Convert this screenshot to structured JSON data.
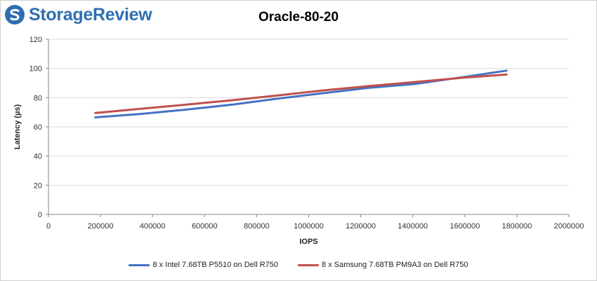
{
  "brand": {
    "name": "StorageReview",
    "color": "#2e6fb0",
    "icon": "storagereview-logo-icon"
  },
  "chart_data": {
    "type": "line",
    "title": "Oracle-80-20",
    "xlabel": "IOPS",
    "ylabel": "Latency (µs)",
    "xlim": [
      0,
      2000000
    ],
    "ylim": [
      0,
      120
    ],
    "x_ticks": [
      0,
      200000,
      400000,
      600000,
      800000,
      1000000,
      1200000,
      1400000,
      1600000,
      1800000,
      2000000
    ],
    "y_ticks": [
      0,
      20,
      40,
      60,
      80,
      100,
      120
    ],
    "grid": "horizontal",
    "legend_position": "bottom",
    "series": [
      {
        "name": "8 x Intel 7.68TB P5510 on Dell R750",
        "color": "#4472c4",
        "x": [
          180000,
          350000,
          530000,
          710000,
          880000,
          1060000,
          1230000,
          1410000,
          1590000,
          1760000
        ],
        "y": [
          66.5,
          68.8,
          71.8,
          75.3,
          79.3,
          83.2,
          86.7,
          89.4,
          94.0,
          98.5
        ]
      },
      {
        "name": "8 x Samsung 7.68TB PM9A3 on Dell R750",
        "color": "#c0504d",
        "x": [
          180000,
          350000,
          530000,
          710000,
          880000,
          1060000,
          1230000,
          1410000,
          1590000,
          1760000
        ],
        "y": [
          69.5,
          72.3,
          75.2,
          78.3,
          81.5,
          85.0,
          87.9,
          90.7,
          93.6,
          95.8
        ]
      }
    ]
  }
}
